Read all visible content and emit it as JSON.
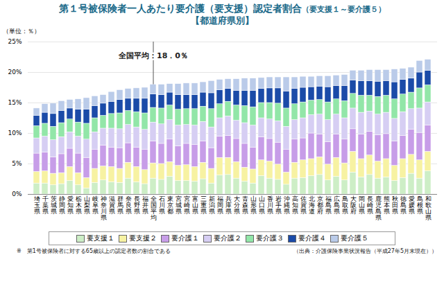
{
  "chart_data": {
    "type": "bar",
    "stacked": true,
    "title": "第１号被保険者一人あたり要介護（要支援）認定者割合",
    "title_note": "（要支援１～要介護５）",
    "subtitle": "【都道府県別】",
    "y_label": "（単位：％）",
    "footnote": "※　第1号被保険者に対する65歳以上の認定者数の割合である",
    "source": "（出典：介護保険事業状況報告（平成27年5月末現在））",
    "annotations": [
      {
        "text": "全国平均：18．0％",
        "x": "全国平均"
      }
    ],
    "grid": true,
    "legend": "bottom",
    "ylim": [
      0,
      25
    ],
    "yticks": [
      {
        "value": 0,
        "label": "0%"
      },
      {
        "value": 5,
        "label": "5%"
      },
      {
        "value": 10,
        "label": "10%"
      },
      {
        "value": 15,
        "label": "15%"
      },
      {
        "value": 20,
        "label": "20%"
      },
      {
        "value": 25,
        "label": "25%"
      }
    ],
    "categories": [
      "埼玉県",
      "千葉県",
      "茨城県",
      "静岡県",
      "愛知県",
      "栃木県",
      "山梨県",
      "岐阜県",
      "神奈川県",
      "滋賀県",
      "群馬県",
      "奈良県",
      "長野県",
      "福井県",
      "全国平均",
      "石川県",
      "東京都",
      "宮城県",
      "宮崎県",
      "富山県",
      "三重県",
      "新潟県",
      "福岡県",
      "兵庫県",
      "大分県",
      "青森県",
      "山形県",
      "山口県",
      "香川県",
      "岩手県",
      "沖縄県",
      "高知県",
      "佐賀県",
      "北海道",
      "京都府",
      "福島県",
      "広島県",
      "鳥取県",
      "大阪府",
      "岡山県",
      "長崎県",
      "鹿児島県",
      "熊本県",
      "秋田県",
      "徳島県",
      "愛媛県",
      "島根県",
      "和歌山県"
    ],
    "series": [
      {
        "name": "要支援１",
        "color": "#cdeec6",
        "values": [
          1.8,
          1.8,
          1.5,
          1.7,
          2.2,
          1.5,
          1.0,
          1.9,
          2.3,
          2.0,
          1.9,
          2.6,
          2.0,
          1.7,
          2.6,
          2.4,
          2.9,
          2.2,
          2.2,
          2.1,
          2.5,
          1.8,
          3.1,
          3.2,
          2.6,
          2.1,
          1.8,
          3.0,
          2.6,
          2.4,
          1.6,
          2.6,
          2.7,
          3.0,
          3.2,
          2.3,
          2.9,
          2.3,
          3.6,
          2.8,
          3.2,
          2.6,
          2.8,
          2.2,
          2.7,
          3.4,
          2.6,
          3.8
        ]
      },
      {
        "name": "要支援２",
        "color": "#f7f2a2",
        "values": [
          1.9,
          2.0,
          1.9,
          1.8,
          2.3,
          2.0,
          1.7,
          2.3,
          2.3,
          2.5,
          2.3,
          2.6,
          2.5,
          2.3,
          2.5,
          2.6,
          2.4,
          2.5,
          2.6,
          2.4,
          2.7,
          2.4,
          2.9,
          2.8,
          2.7,
          2.3,
          2.3,
          2.6,
          2.8,
          2.5,
          2.0,
          2.6,
          2.9,
          2.8,
          2.9,
          2.6,
          3.1,
          2.8,
          3.4,
          3.0,
          3.2,
          2.8,
          3.0,
          2.5,
          3.1,
          3.1,
          3.0,
          3.2
        ]
      },
      {
        "name": "要介護１",
        "color": "#c79de8",
        "values": [
          3.0,
          3.1,
          2.7,
          3.1,
          3.0,
          3.2,
          3.3,
          3.1,
          3.4,
          3.2,
          3.4,
          3.2,
          3.2,
          3.3,
          3.6,
          3.3,
          3.7,
          3.2,
          3.5,
          3.6,
          3.5,
          3.4,
          3.5,
          3.6,
          3.8,
          3.9,
          3.6,
          3.8,
          3.7,
          3.6,
          3.7,
          3.8,
          3.6,
          4.2,
          3.7,
          3.7,
          3.8,
          3.9,
          3.7,
          4.0,
          3.9,
          4.3,
          4.1,
          4.0,
          3.8,
          4.1,
          4.5,
          4.3
        ]
      },
      {
        "name": "要介護２",
        "color": "#d6cef3",
        "values": [
          2.5,
          2.6,
          2.8,
          2.8,
          2.7,
          2.8,
          3.0,
          2.9,
          2.8,
          3.1,
          3.1,
          3.0,
          3.3,
          3.3,
          3.1,
          3.2,
          3.2,
          3.4,
          3.1,
          3.2,
          3.2,
          3.4,
          3.0,
          3.2,
          3.0,
          3.4,
          3.6,
          3.1,
          3.2,
          3.5,
          3.8,
          3.2,
          3.3,
          3.0,
          3.3,
          3.6,
          3.3,
          3.5,
          3.4,
          3.6,
          3.3,
          3.4,
          3.5,
          3.7,
          3.9,
          3.4,
          4.0,
          3.8
        ]
      },
      {
        "name": "要介護３",
        "color": "#92e6a8",
        "values": [
          2.0,
          2.1,
          2.2,
          2.3,
          2.1,
          2.3,
          2.6,
          2.3,
          2.1,
          2.4,
          2.6,
          2.3,
          2.5,
          2.7,
          2.4,
          2.6,
          2.4,
          2.6,
          2.6,
          2.7,
          2.5,
          3.0,
          2.3,
          2.4,
          2.5,
          2.8,
          3.0,
          2.5,
          2.7,
          2.9,
          3.0,
          2.6,
          2.6,
          2.4,
          2.4,
          2.9,
          2.5,
          2.8,
          2.4,
          2.8,
          2.6,
          2.9,
          2.8,
          3.2,
          2.9,
          2.7,
          3.3,
          2.8
        ]
      },
      {
        "name": "要介護４",
        "color": "#1b4ba8",
        "values": [
          1.7,
          1.8,
          2.1,
          2.0,
          1.8,
          2.1,
          2.3,
          2.0,
          2.0,
          2.0,
          2.2,
          2.0,
          2.2,
          2.4,
          2.2,
          2.2,
          2.1,
          2.4,
          2.3,
          2.3,
          2.3,
          2.6,
          2.3,
          2.1,
          2.4,
          2.5,
          2.7,
          2.3,
          2.4,
          2.5,
          2.8,
          2.5,
          2.4,
          2.2,
          2.2,
          2.5,
          2.2,
          2.5,
          2.2,
          2.4,
          2.4,
          2.5,
          2.4,
          2.8,
          2.4,
          2.3,
          2.6,
          2.4
        ]
      },
      {
        "name": "要介護５",
        "color": "#bacbe9",
        "values": [
          1.2,
          1.4,
          1.7,
          1.6,
          1.4,
          1.7,
          1.9,
          1.6,
          1.4,
          1.6,
          1.6,
          1.6,
          1.7,
          1.8,
          1.6,
          1.7,
          1.4,
          1.8,
          1.9,
          1.9,
          1.7,
          2.0,
          1.7,
          1.6,
          1.9,
          2.0,
          2.0,
          1.8,
          1.8,
          1.8,
          2.3,
          1.9,
          1.8,
          1.7,
          1.7,
          1.8,
          1.7,
          1.8,
          1.6,
          1.7,
          1.8,
          1.9,
          1.8,
          2.1,
          1.8,
          1.8,
          1.9,
          1.8
        ]
      }
    ]
  }
}
